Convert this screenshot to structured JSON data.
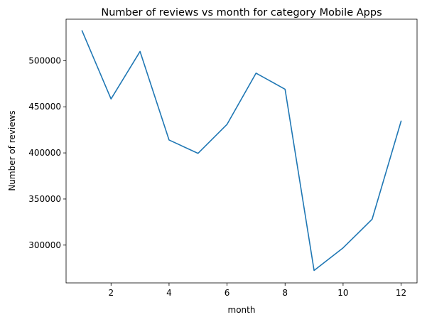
{
  "chart_data": {
    "type": "line",
    "title": "Number of reviews vs month for category Mobile Apps",
    "xlabel": "month",
    "ylabel": "Number of reviews",
    "xlim": [
      0.45,
      12.55
    ],
    "ylim": [
      259000,
      545000
    ],
    "xticks": [
      2,
      4,
      6,
      8,
      10,
      12
    ],
    "yticks": [
      300000,
      350000,
      400000,
      450000,
      500000
    ],
    "grid": false,
    "series": [
      {
        "color": "#1f77b4",
        "x": [
          1,
          2,
          3,
          4,
          5,
          6,
          7,
          8,
          9,
          10,
          11,
          12
        ],
        "y": [
          532500,
          458500,
          510000,
          414000,
          399500,
          431000,
          486500,
          469000,
          272500,
          297000,
          328000,
          434500
        ]
      }
    ]
  }
}
